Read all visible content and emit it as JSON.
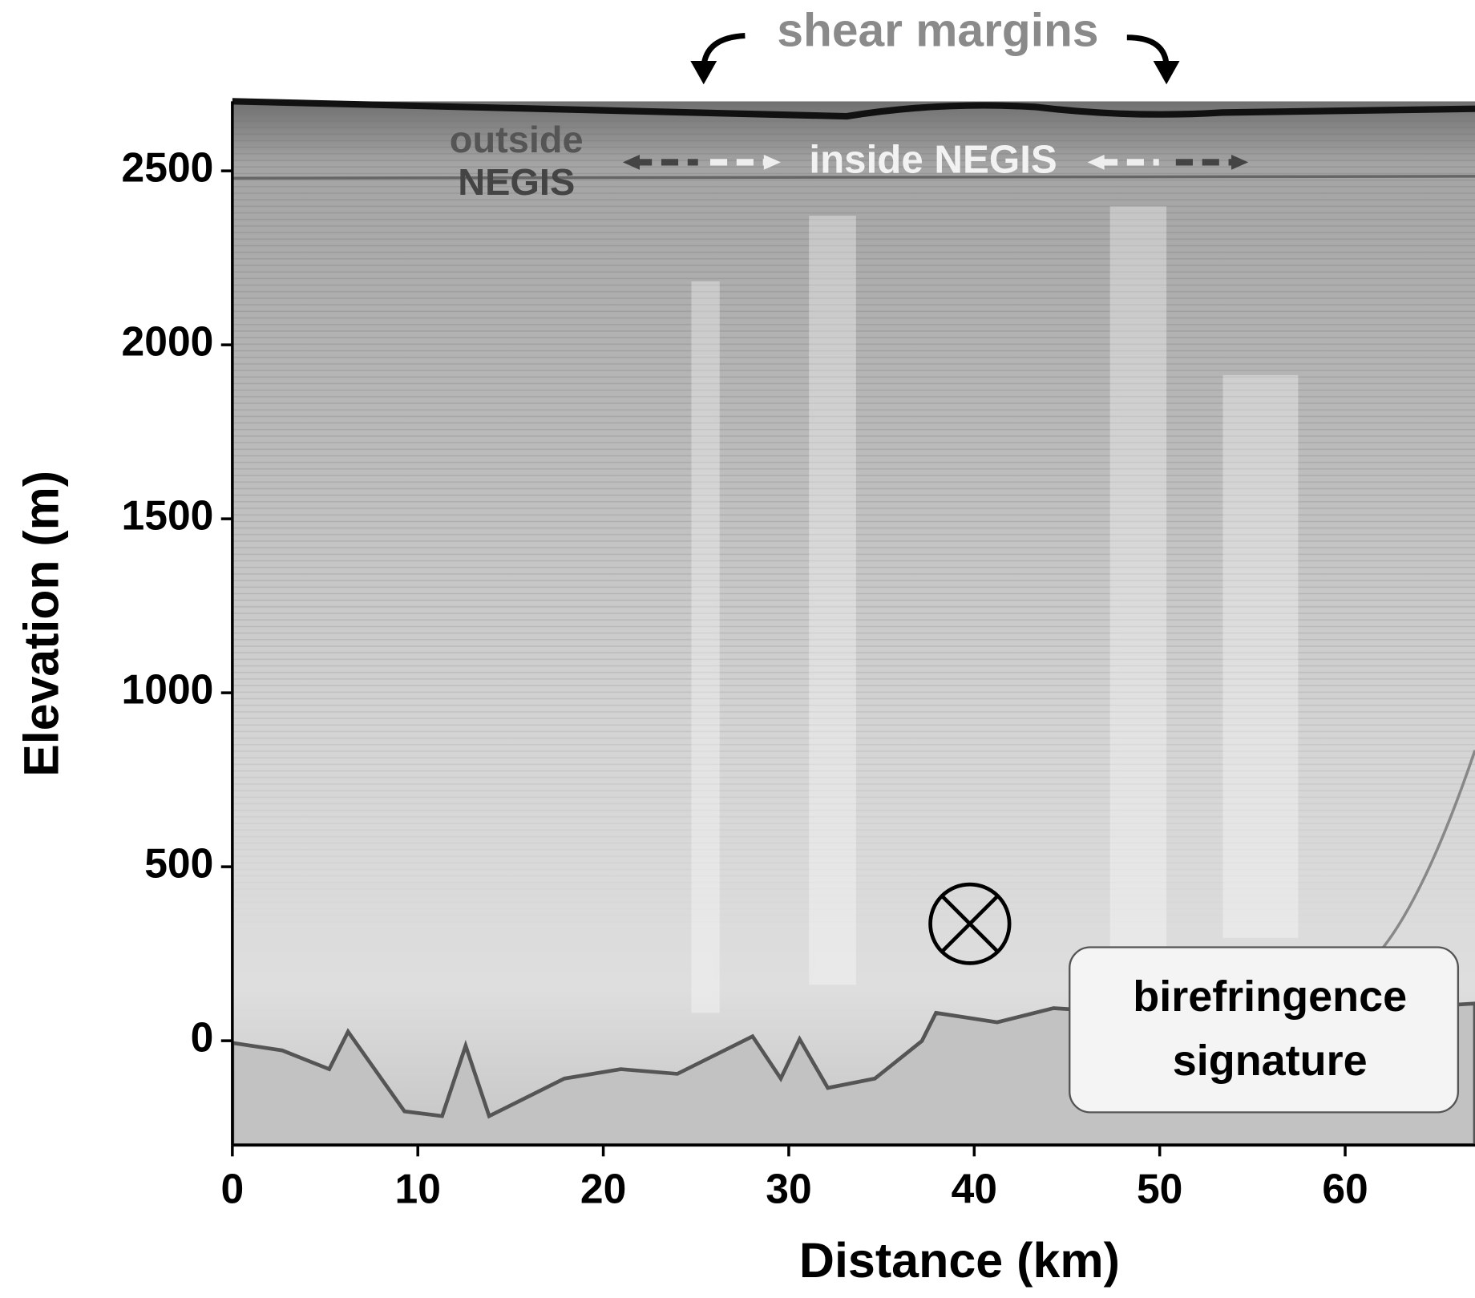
{
  "chart_data": {
    "type": "radargram",
    "xlabel": "Distance (km)",
    "ylabel": "Elevation (m)",
    "xlim": [
      0,
      67
    ],
    "ylim": [
      -300,
      2700
    ],
    "xticks": [
      0,
      10,
      20,
      30,
      40,
      50,
      60
    ],
    "yticks": [
      0,
      500,
      1000,
      1500,
      2000,
      2500
    ],
    "annotations": {
      "shear_margins": "shear margins",
      "outside_negis": [
        "outside",
        "NEGIS"
      ],
      "inside_negis": "inside NEGIS",
      "birefringence": [
        "birefringence",
        "signature"
      ]
    }
  }
}
